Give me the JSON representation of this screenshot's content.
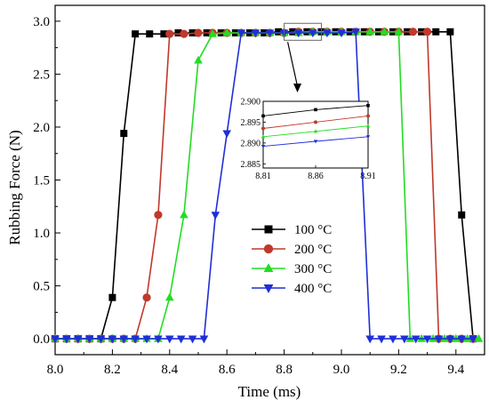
{
  "chart_data": {
    "type": "line",
    "xlabel": "Time (ms)",
    "ylabel": "Rubbing Force (N)",
    "xlim": [
      8.0,
      9.5
    ],
    "ylim": [
      -0.15,
      3.15
    ],
    "x_ticks": [
      "8.0",
      "8.2",
      "8.4",
      "8.6",
      "8.8",
      "9.0",
      "9.2",
      "9.4"
    ],
    "y_ticks": [
      "0.0",
      "0.5",
      "1.0",
      "1.5",
      "2.0",
      "2.5",
      "3.0"
    ],
    "grid": false,
    "legend_position": "lower-center",
    "series": [
      {
        "name": "100 °C",
        "color": "#000000",
        "marker": "square",
        "x": [
          8.0,
          8.04,
          8.08,
          8.12,
          8.16,
          8.2,
          8.24,
          8.28,
          8.33,
          8.38,
          8.43,
          8.48,
          8.53,
          8.58,
          8.63,
          8.68,
          8.73,
          8.78,
          8.83,
          8.88,
          8.93,
          8.98,
          9.03,
          9.08,
          9.13,
          9.18,
          9.23,
          9.28,
          9.33,
          9.38,
          9.42,
          9.46
        ],
        "y": [
          0.0,
          0.0,
          0.0,
          0.0,
          0.0,
          0.39,
          1.94,
          2.88,
          2.88,
          2.88,
          2.89,
          2.89,
          2.89,
          2.89,
          2.89,
          2.89,
          2.89,
          2.9,
          2.9,
          2.9,
          2.9,
          2.9,
          2.9,
          2.9,
          2.9,
          2.9,
          2.9,
          2.9,
          2.9,
          2.9,
          1.17,
          0.0
        ]
      },
      {
        "name": "200 °C",
        "color": "#c0392b",
        "marker": "circle",
        "x": [
          8.0,
          8.04,
          8.08,
          8.12,
          8.16,
          8.2,
          8.24,
          8.28,
          8.32,
          8.36,
          8.4,
          8.45,
          8.5,
          8.55,
          8.6,
          8.65,
          8.7,
          8.75,
          8.8,
          8.85,
          8.9,
          8.95,
          9.0,
          9.05,
          9.1,
          9.15,
          9.2,
          9.25,
          9.3,
          9.34,
          9.38,
          9.42,
          9.46
        ],
        "y": [
          0.0,
          0.0,
          0.0,
          0.0,
          0.0,
          0.0,
          0.0,
          0.0,
          0.39,
          1.17,
          2.88,
          2.88,
          2.89,
          2.89,
          2.89,
          2.89,
          2.89,
          2.89,
          2.89,
          2.9,
          2.9,
          2.9,
          2.9,
          2.9,
          2.9,
          2.9,
          2.9,
          2.9,
          2.9,
          0.0,
          0.0,
          0.0,
          0.0
        ]
      },
      {
        "name": "300 °C",
        "color": "#22dd22",
        "marker": "triangle-up",
        "x": [
          8.0,
          8.04,
          8.08,
          8.12,
          8.16,
          8.2,
          8.24,
          8.28,
          8.32,
          8.36,
          8.4,
          8.45,
          8.5,
          8.55,
          8.6,
          8.65,
          8.7,
          8.75,
          8.8,
          8.85,
          8.9,
          8.95,
          9.0,
          9.05,
          9.1,
          9.15,
          9.2,
          9.24,
          9.28,
          9.32,
          9.36,
          9.4,
          9.44,
          9.48
        ],
        "y": [
          0.0,
          0.0,
          0.0,
          0.0,
          0.0,
          0.0,
          0.0,
          0.0,
          0.0,
          0.0,
          0.39,
          1.17,
          2.63,
          2.88,
          2.89,
          2.89,
          2.89,
          2.89,
          2.89,
          2.89,
          2.9,
          2.9,
          2.9,
          2.9,
          2.9,
          2.9,
          2.9,
          0.0,
          0.0,
          0.0,
          0.0,
          0.0,
          0.0,
          0.0
        ]
      },
      {
        "name": "400 °C",
        "color": "#1f2fd6",
        "marker": "triangle-down",
        "x": [
          8.0,
          8.04,
          8.08,
          8.12,
          8.16,
          8.2,
          8.24,
          8.28,
          8.32,
          8.36,
          8.4,
          8.44,
          8.48,
          8.52,
          8.56,
          8.6,
          8.65,
          8.7,
          8.75,
          8.8,
          8.85,
          8.9,
          8.95,
          9.0,
          9.05,
          9.1,
          9.14,
          9.18,
          9.22,
          9.26,
          9.3,
          9.34,
          9.38,
          9.42,
          9.46
        ],
        "y": [
          0.0,
          0.0,
          0.0,
          0.0,
          0.0,
          0.0,
          0.0,
          0.0,
          0.0,
          0.0,
          0.0,
          0.0,
          0.0,
          0.0,
          1.17,
          1.94,
          2.89,
          2.89,
          2.89,
          2.89,
          2.89,
          2.89,
          2.89,
          2.89,
          2.9,
          0.0,
          0.0,
          0.0,
          0.0,
          0.0,
          0.0,
          0.0,
          0.0,
          0.0,
          0.0
        ]
      }
    ],
    "inset": {
      "x_ticks": [
        "8.81",
        "8.86",
        "8.91"
      ],
      "y_ticks": [
        "2.900",
        "2.895",
        "2.890",
        "2.885"
      ],
      "xlim": [
        8.81,
        8.91
      ],
      "ylim": [
        2.884,
        2.9
      ],
      "series": [
        {
          "x": [
            8.81,
            8.86,
            8.91
          ],
          "y": [
            2.8965,
            2.898,
            2.899
          ]
        },
        {
          "x": [
            8.81,
            8.86,
            8.91
          ],
          "y": [
            2.8935,
            2.895,
            2.8965
          ]
        },
        {
          "x": [
            8.81,
            8.86,
            8.91
          ],
          "y": [
            2.8915,
            2.8928,
            2.8941
          ]
        },
        {
          "x": [
            8.81,
            8.86,
            8.91
          ],
          "y": [
            2.8892,
            2.8904,
            2.8915
          ]
        }
      ]
    }
  }
}
